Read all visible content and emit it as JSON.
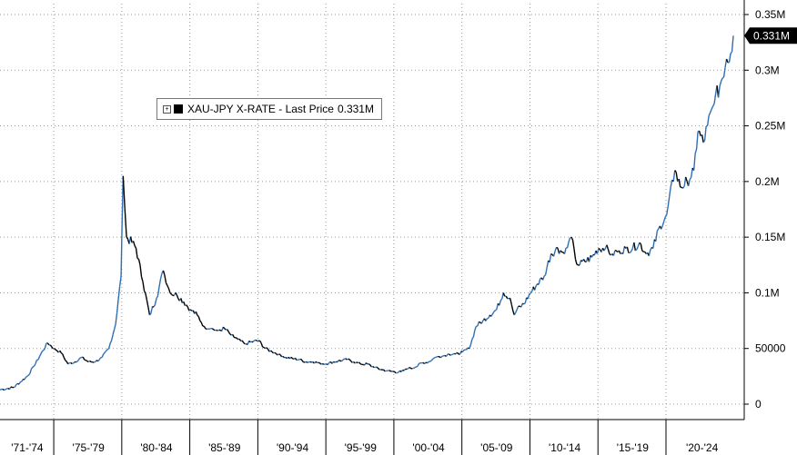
{
  "chart_data": {
    "type": "line",
    "legend": {
      "series_label": "XAU-JPY X-RATE - Last Price",
      "last_value": "0.331M"
    },
    "last_price_badge": "0.331M",
    "y_ticks": [
      "0",
      "50000",
      "0.1M",
      "0.15M",
      "0.2M",
      "0.25M",
      "0.3M",
      "0.35M"
    ],
    "y_tick_values": [
      0,
      50000,
      100000,
      150000,
      200000,
      250000,
      300000,
      350000
    ],
    "x_ticks": [
      "'71-'74",
      "'75-'79",
      "'80-'84",
      "'85-'89",
      "'90-'94",
      "'95-'99",
      "'00-'04",
      "'05-'09",
      "'10-'14",
      "'15-'19",
      "'20-'24"
    ],
    "ylim": [
      0,
      350000
    ],
    "xlim": [
      1971.0,
      2025.3
    ],
    "grid": true,
    "legend_position": "top-left",
    "colors": {
      "up": "#2e6eb5",
      "down": "#000000"
    },
    "series": [
      {
        "name": "XAU-JPY X-RATE",
        "points": [
          [
            1971.0,
            13000
          ],
          [
            1972.0,
            15000
          ],
          [
            1973.0,
            25000
          ],
          [
            1973.5,
            34000
          ],
          [
            1974.0,
            45000
          ],
          [
            1974.5,
            55000
          ],
          [
            1975.0,
            50000
          ],
          [
            1975.5,
            46000
          ],
          [
            1976.0,
            36000
          ],
          [
            1976.5,
            38000
          ],
          [
            1977.0,
            42000
          ],
          [
            1977.5,
            38000
          ],
          [
            1978.0,
            38000
          ],
          [
            1978.5,
            42000
          ],
          [
            1979.0,
            50000
          ],
          [
            1979.5,
            72000
          ],
          [
            1979.9,
            115000
          ],
          [
            1980.05,
            205000
          ],
          [
            1980.3,
            150000
          ],
          [
            1980.7,
            145000
          ],
          [
            1981.0,
            140000
          ],
          [
            1981.5,
            110000
          ],
          [
            1982.0,
            80000
          ],
          [
            1982.5,
            95000
          ],
          [
            1983.0,
            120000
          ],
          [
            1983.5,
            100000
          ],
          [
            1984.0,
            98000
          ],
          [
            1984.5,
            92000
          ],
          [
            1985.0,
            85000
          ],
          [
            1985.5,
            80000
          ],
          [
            1986.0,
            70000
          ],
          [
            1986.5,
            68000
          ],
          [
            1987.0,
            66000
          ],
          [
            1987.5,
            68000
          ],
          [
            1988.0,
            62000
          ],
          [
            1988.5,
            58000
          ],
          [
            1989.0,
            54000
          ],
          [
            1989.5,
            56000
          ],
          [
            1990.0,
            57000
          ],
          [
            1990.5,
            50000
          ],
          [
            1991.0,
            47000
          ],
          [
            1991.5,
            45000
          ],
          [
            1992.0,
            42000
          ],
          [
            1992.5,
            41000
          ],
          [
            1993.0,
            40000
          ],
          [
            1993.5,
            38000
          ],
          [
            1994.0,
            38000
          ],
          [
            1994.5,
            37000
          ],
          [
            1995.0,
            36000
          ],
          [
            1995.5,
            38000
          ],
          [
            1996.0,
            39000
          ],
          [
            1996.5,
            40000
          ],
          [
            1997.0,
            38000
          ],
          [
            1997.5,
            36000
          ],
          [
            1998.0,
            36000
          ],
          [
            1998.5,
            33000
          ],
          [
            1999.0,
            31000
          ],
          [
            1999.5,
            30000
          ],
          [
            2000.0,
            29000
          ],
          [
            2000.5,
            29000
          ],
          [
            2001.0,
            32000
          ],
          [
            2001.5,
            33000
          ],
          [
            2002.0,
            37000
          ],
          [
            2002.5,
            38000
          ],
          [
            2003.0,
            42000
          ],
          [
            2003.5,
            43000
          ],
          [
            2004.0,
            45000
          ],
          [
            2004.5,
            45000
          ],
          [
            2005.0,
            47000
          ],
          [
            2005.5,
            50000
          ],
          [
            2006.0,
            70000
          ],
          [
            2006.5,
            75000
          ],
          [
            2007.0,
            80000
          ],
          [
            2007.5,
            85000
          ],
          [
            2008.0,
            100000
          ],
          [
            2008.5,
            95000
          ],
          [
            2008.8,
            80000
          ],
          [
            2009.0,
            85000
          ],
          [
            2009.5,
            90000
          ],
          [
            2010.0,
            100000
          ],
          [
            2010.5,
            108000
          ],
          [
            2011.0,
            115000
          ],
          [
            2011.5,
            135000
          ],
          [
            2012.0,
            140000
          ],
          [
            2012.5,
            135000
          ],
          [
            2013.0,
            150000
          ],
          [
            2013.3,
            130000
          ],
          [
            2013.5,
            125000
          ],
          [
            2014.0,
            128000
          ],
          [
            2014.5,
            132000
          ],
          [
            2015.0,
            140000
          ],
          [
            2015.5,
            140000
          ],
          [
            2016.0,
            135000
          ],
          [
            2016.5,
            138000
          ],
          [
            2017.0,
            140000
          ],
          [
            2017.5,
            140000
          ],
          [
            2018.0,
            145000
          ],
          [
            2018.5,
            135000
          ],
          [
            2019.0,
            140000
          ],
          [
            2019.5,
            160000
          ],
          [
            2020.0,
            170000
          ],
          [
            2020.6,
            210000
          ],
          [
            2021.0,
            195000
          ],
          [
            2021.5,
            200000
          ],
          [
            2022.0,
            210000
          ],
          [
            2022.3,
            245000
          ],
          [
            2022.7,
            235000
          ],
          [
            2023.0,
            250000
          ],
          [
            2023.5,
            270000
          ],
          [
            2024.0,
            290000
          ],
          [
            2024.4,
            310000
          ],
          [
            2024.7,
            315000
          ],
          [
            2024.9,
            331000
          ]
        ]
      }
    ]
  }
}
